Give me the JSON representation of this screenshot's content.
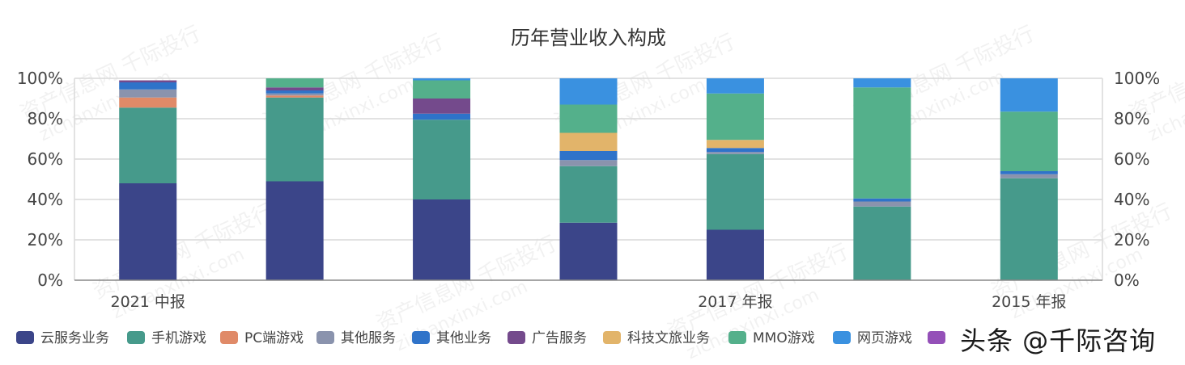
{
  "chart_data": {
    "type": "bar",
    "stacked": true,
    "normalized": true,
    "title": "历年营业收入构成",
    "categories": [
      "2021 中报",
      "",
      "",
      "",
      "2017 年报",
      "",
      "2015 年报"
    ],
    "ylim": [
      0,
      100
    ],
    "yticks": [
      "0%",
      "20%",
      "40%",
      "60%",
      "80%",
      "100%"
    ],
    "grid": true,
    "legend_position": "bottom",
    "series": [
      {
        "name": "云服务业务",
        "color": "#3b4589",
        "values": [
          48,
          49,
          40,
          28.5,
          25,
          0,
          0
        ]
      },
      {
        "name": "手机游戏",
        "color": "#469a8b",
        "values": [
          37.5,
          41.5,
          39.5,
          28,
          37.5,
          36.5,
          50.5
        ]
      },
      {
        "name": "PC端游戏",
        "color": "#e08a68",
        "values": [
          5,
          1,
          0,
          0,
          0,
          0,
          0
        ]
      },
      {
        "name": "其他服务",
        "color": "#8a93ad",
        "values": [
          4,
          1,
          0,
          3,
          1,
          2.5,
          2
        ]
      },
      {
        "name": "其他业务",
        "color": "#2f73c9",
        "values": [
          3.5,
          1.5,
          3,
          4.5,
          2,
          1.5,
          1.5
        ]
      },
      {
        "name": "广告服务",
        "color": "#744a8c",
        "values": [
          1,
          1.5,
          7.5,
          0,
          0,
          0,
          0
        ]
      },
      {
        "name": "科技文旅业务",
        "color": "#e2b46a",
        "values": [
          0,
          0,
          0,
          9,
          4,
          0,
          0
        ]
      },
      {
        "name": "MMO游戏",
        "color": "#54b08b",
        "values": [
          0,
          4.5,
          9,
          14,
          23,
          55,
          29.5
        ]
      },
      {
        "name": "网页游戏",
        "color": "#3a91e0",
        "values": [
          0,
          0,
          1,
          13,
          7.5,
          4.5,
          16.5
        ]
      },
      {
        "name": "",
        "color": "#9450b8",
        "values": [
          0,
          0,
          0,
          0,
          0,
          0,
          0
        ]
      }
    ]
  },
  "watermark": {
    "text": "资产信息网 千际投行",
    "url": "zichanxinxi.com"
  },
  "overlay_text": "头条 @千际咨询"
}
